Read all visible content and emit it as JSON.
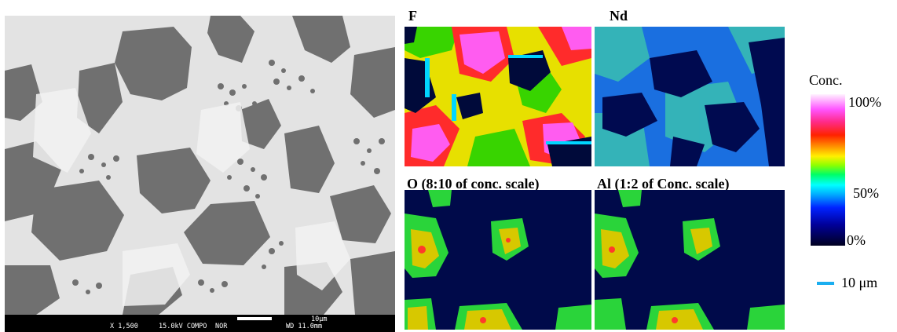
{
  "sem_image": {
    "magnification": "X 1,500",
    "voltage": "15.0kV COMPO",
    "mode": "NOR",
    "working_distance": "WD 11.0mm",
    "scale_bar_label": "10μm"
  },
  "maps": [
    {
      "label": "F"
    },
    {
      "label": "Nd"
    },
    {
      "label": "O (8:10 of conc. scale)"
    },
    {
      "label": "Al (1:2 of Conc. scale)"
    }
  ],
  "legend": {
    "title": "Conc.",
    "max_label": "100%",
    "mid_label": "50%",
    "min_label": "0%",
    "scale_bar_label": "10 μm",
    "scale_bar_color": "#1aaef0"
  },
  "colors": {
    "map_background": "#00006b",
    "sem_matrix": "#6f6f6f",
    "sem_bright_phase": "#e9e9e9"
  }
}
